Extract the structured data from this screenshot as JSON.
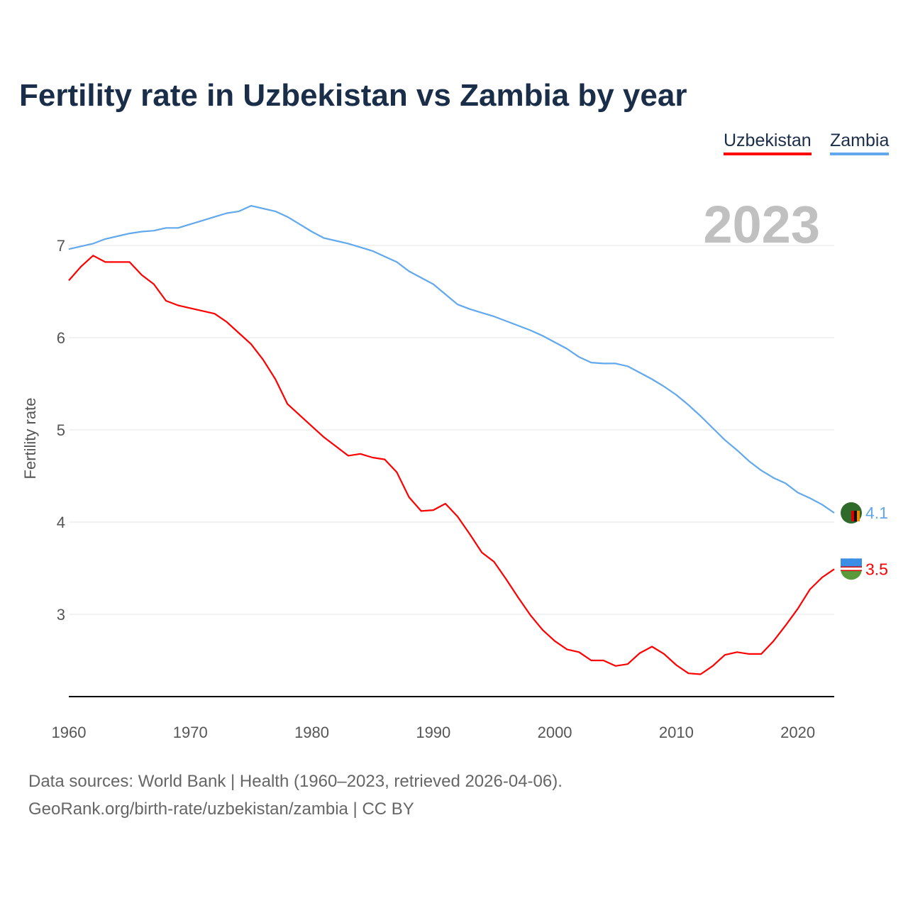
{
  "chart_data": {
    "type": "line",
    "title": "Fertility rate in Uzbekistan vs Zambia by year",
    "xlabel": "",
    "ylabel": "Fertility rate",
    "xlim": [
      1960,
      2023
    ],
    "ylim": [
      2.1,
      7.6
    ],
    "x_ticks": [
      "1960",
      "1970",
      "1980",
      "1990",
      "2000",
      "2010",
      "2020"
    ],
    "y_ticks": [
      "3",
      "4",
      "5",
      "6",
      "7"
    ],
    "grid": true,
    "legend_position": "top-right",
    "year_label": "2023",
    "x": [
      1960,
      1961,
      1962,
      1963,
      1964,
      1965,
      1966,
      1967,
      1968,
      1969,
      1970,
      1971,
      1972,
      1973,
      1974,
      1975,
      1976,
      1977,
      1978,
      1979,
      1980,
      1981,
      1982,
      1983,
      1984,
      1985,
      1986,
      1987,
      1988,
      1989,
      1990,
      1991,
      1992,
      1993,
      1994,
      1995,
      1996,
      1997,
      1998,
      1999,
      2000,
      2001,
      2002,
      2003,
      2004,
      2005,
      2006,
      2007,
      2008,
      2009,
      2010,
      2011,
      2012,
      2013,
      2014,
      2015,
      2016,
      2017,
      2018,
      2019,
      2020,
      2021,
      2022,
      2023
    ],
    "series": [
      {
        "name": "Uzbekistan",
        "color": "#ff0000",
        "end_label": "3.5",
        "values": [
          6.62,
          6.77,
          6.89,
          6.82,
          6.82,
          6.82,
          6.68,
          6.58,
          6.4,
          6.35,
          6.32,
          6.29,
          6.26,
          6.17,
          6.05,
          5.93,
          5.76,
          5.55,
          5.28,
          5.16,
          5.04,
          4.92,
          4.82,
          4.72,
          4.74,
          4.7,
          4.68,
          4.54,
          4.27,
          4.12,
          4.13,
          4.2,
          4.06,
          3.87,
          3.67,
          3.57,
          3.38,
          3.18,
          2.99,
          2.83,
          2.71,
          2.62,
          2.59,
          2.5,
          2.5,
          2.44,
          2.46,
          2.58,
          2.65,
          2.57,
          2.45,
          2.36,
          2.35,
          2.44,
          2.56,
          2.59,
          2.57,
          2.57,
          2.71,
          2.88,
          3.06,
          3.27,
          3.4,
          3.49
        ]
      },
      {
        "name": "Zambia",
        "color": "#62a8ec",
        "end_label": "4.1",
        "values": [
          6.96,
          6.99,
          7.02,
          7.07,
          7.1,
          7.13,
          7.15,
          7.16,
          7.19,
          7.19,
          7.23,
          7.27,
          7.31,
          7.35,
          7.37,
          7.43,
          7.4,
          7.37,
          7.31,
          7.23,
          7.15,
          7.08,
          7.05,
          7.02,
          6.98,
          6.94,
          6.88,
          6.82,
          6.72,
          6.65,
          6.58,
          6.47,
          6.36,
          6.31,
          6.27,
          6.23,
          6.18,
          6.13,
          6.08,
          6.02,
          5.95,
          5.88,
          5.79,
          5.73,
          5.72,
          5.72,
          5.69,
          5.62,
          5.55,
          5.47,
          5.38,
          5.27,
          5.15,
          5.02,
          4.89,
          4.78,
          4.66,
          4.56,
          4.48,
          4.42,
          4.32,
          4.26,
          4.19,
          4.1
        ]
      }
    ]
  },
  "footer": {
    "sources": "Data sources: World Bank | Health (1960–2023, retrieved 2026-04-06).",
    "credit": "GeoRank.org/birth-rate/uzbekistan/zambia | CC BY"
  }
}
